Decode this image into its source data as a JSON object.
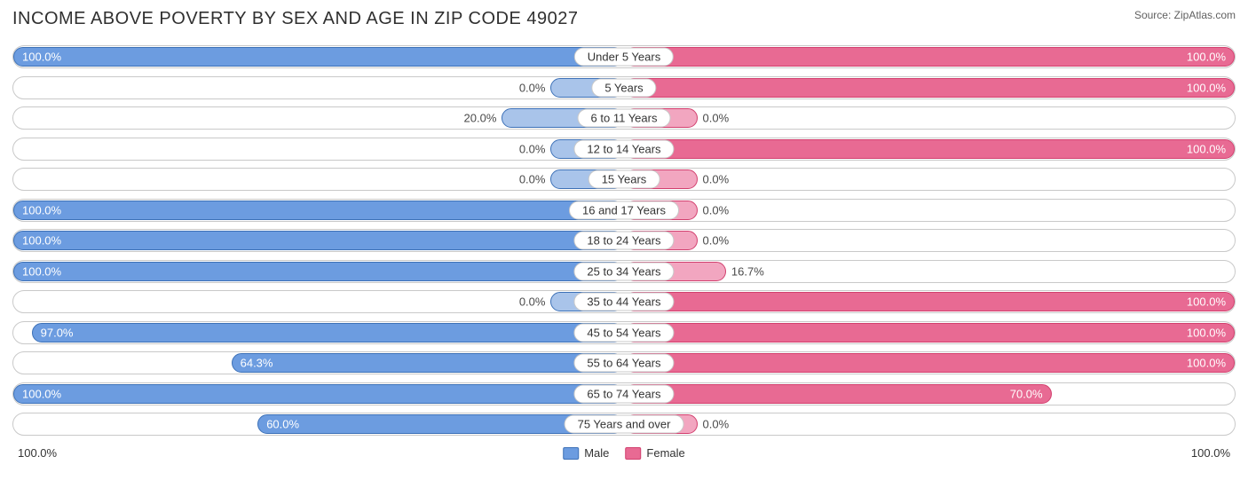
{
  "title": "INCOME ABOVE POVERTY BY SEX AND AGE IN ZIP CODE 49027",
  "source": "Source: ZipAtlas.com",
  "axis_left": "100.0%",
  "axis_right": "100.0%",
  "legend": {
    "male": "Male",
    "female": "Female"
  },
  "colors": {
    "male_fill": "#6c9ce0",
    "male_border": "#3d71b7",
    "male_light": "#a9c4ea",
    "female_fill": "#e86a93",
    "female_border": "#d23f6e",
    "female_light": "#f2a6c0",
    "text_inside": "#ffffff",
    "text_outside": "#4a4a4a",
    "row_border": "#c9c9c9"
  },
  "min_bar_pct": 12,
  "rows": [
    {
      "age": "Under 5 Years",
      "male_val": 100.0,
      "male_label": "100.0%",
      "female_val": 100.0,
      "female_label": "100.0%"
    },
    {
      "age": "5 Years",
      "male_val": 0.0,
      "male_label": "0.0%",
      "female_val": 100.0,
      "female_label": "100.0%"
    },
    {
      "age": "6 to 11 Years",
      "male_val": 20.0,
      "male_label": "20.0%",
      "female_val": 0.0,
      "female_label": "0.0%"
    },
    {
      "age": "12 to 14 Years",
      "male_val": 0.0,
      "male_label": "0.0%",
      "female_val": 100.0,
      "female_label": "100.0%"
    },
    {
      "age": "15 Years",
      "male_val": 0.0,
      "male_label": "0.0%",
      "female_val": 0.0,
      "female_label": "0.0%"
    },
    {
      "age": "16 and 17 Years",
      "male_val": 100.0,
      "male_label": "100.0%",
      "female_val": 0.0,
      "female_label": "0.0%"
    },
    {
      "age": "18 to 24 Years",
      "male_val": 100.0,
      "male_label": "100.0%",
      "female_val": 0.0,
      "female_label": "0.0%"
    },
    {
      "age": "25 to 34 Years",
      "male_val": 100.0,
      "male_label": "100.0%",
      "female_val": 16.7,
      "female_label": "16.7%"
    },
    {
      "age": "35 to 44 Years",
      "male_val": 0.0,
      "male_label": "0.0%",
      "female_val": 100.0,
      "female_label": "100.0%"
    },
    {
      "age": "45 to 54 Years",
      "male_val": 97.0,
      "male_label": "97.0%",
      "female_val": 100.0,
      "female_label": "100.0%"
    },
    {
      "age": "55 to 64 Years",
      "male_val": 64.3,
      "male_label": "64.3%",
      "female_val": 100.0,
      "female_label": "100.0%"
    },
    {
      "age": "65 to 74 Years",
      "male_val": 100.0,
      "male_label": "100.0%",
      "female_val": 70.0,
      "female_label": "70.0%"
    },
    {
      "age": "75 Years and over",
      "male_val": 60.0,
      "male_label": "60.0%",
      "female_val": 0.0,
      "female_label": "0.0%"
    }
  ]
}
